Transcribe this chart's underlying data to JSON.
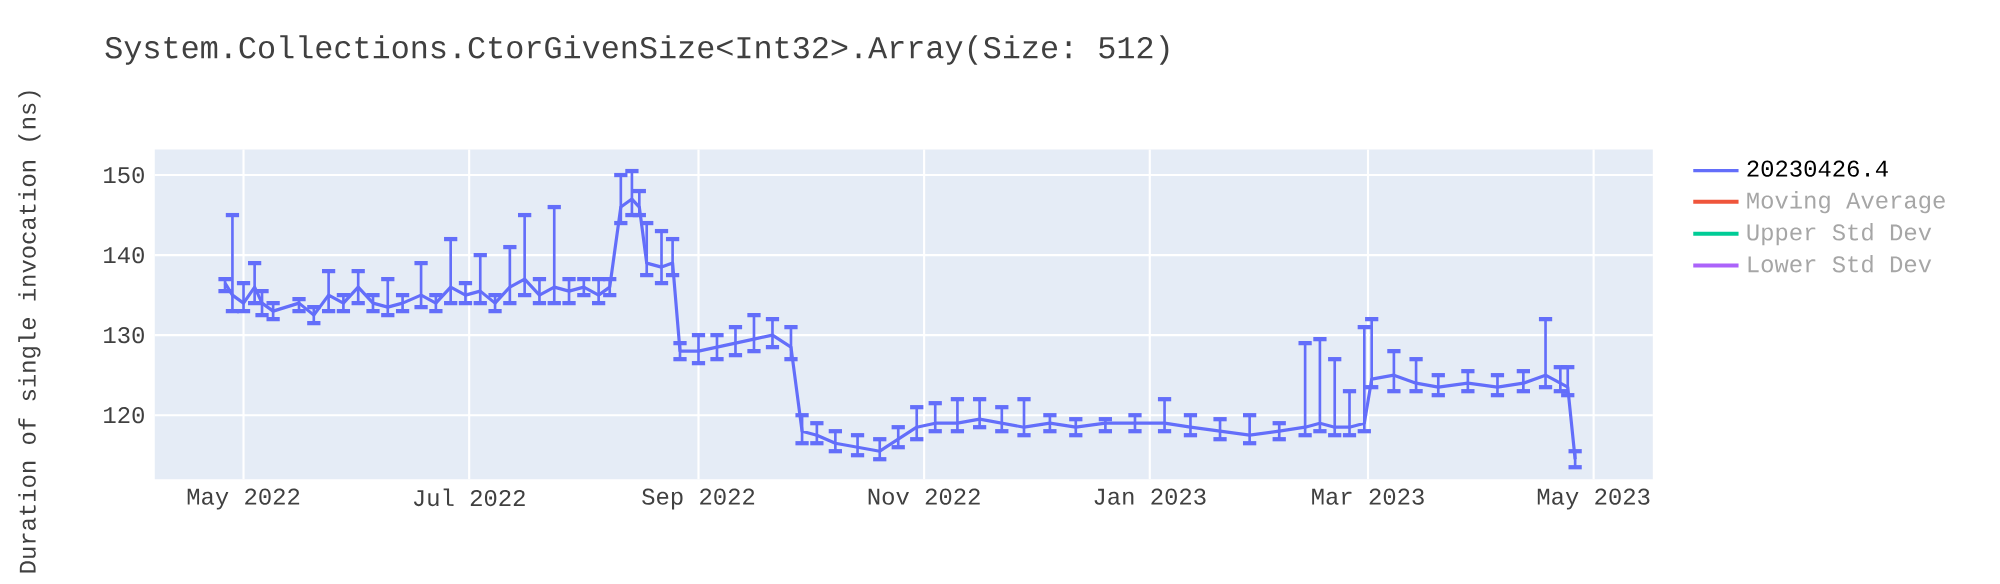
{
  "chart_data": {
    "type": "line",
    "title": "System.Collections.CtorGivenSize<Int32>.Array(Size: 512)",
    "ylabel": "Duration of single invocation (ns)",
    "xlim": [
      "2022-04-07",
      "2023-05-17"
    ],
    "ylim": [
      112,
      153.2
    ],
    "xticks": [
      {
        "value": "2022-05-01",
        "label": "May 2022"
      },
      {
        "value": "2022-07-01",
        "label": "Jul 2022"
      },
      {
        "value": "2022-09-01",
        "label": "Sep 2022"
      },
      {
        "value": "2022-11-01",
        "label": "Nov 2022"
      },
      {
        "value": "2023-01-01",
        "label": "Jan 2023"
      },
      {
        "value": "2023-03-01",
        "label": "Mar 2023"
      },
      {
        "value": "2023-05-01",
        "label": "May 2023"
      }
    ],
    "yticks": [
      120,
      130,
      140,
      150
    ],
    "grid": true,
    "legend": "top right",
    "marker": "none",
    "line_style": "solid",
    "series": [
      {
        "name": "20230426.4",
        "color": "#636efa",
        "x": [
          "2022-04-26",
          "2022-04-28",
          "2022-05-01",
          "2022-05-04",
          "2022-05-06",
          "2022-05-09",
          "2022-05-16",
          "2022-05-20",
          "2022-05-24",
          "2022-05-28",
          "2022-06-01",
          "2022-06-05",
          "2022-06-09",
          "2022-06-13",
          "2022-06-18",
          "2022-06-22",
          "2022-06-26",
          "2022-06-30",
          "2022-07-04",
          "2022-07-08",
          "2022-07-12",
          "2022-07-16",
          "2022-07-20",
          "2022-07-24",
          "2022-07-28",
          "2022-08-01",
          "2022-08-05",
          "2022-08-08",
          "2022-08-11",
          "2022-08-14",
          "2022-08-16",
          "2022-08-18",
          "2022-08-22",
          "2022-08-25",
          "2022-08-27",
          "2022-09-01",
          "2022-09-06",
          "2022-09-11",
          "2022-09-16",
          "2022-09-21",
          "2022-09-26",
          "2022-09-29",
          "2022-10-03",
          "2022-10-08",
          "2022-10-14",
          "2022-10-20",
          "2022-10-25",
          "2022-10-30",
          "2022-11-04",
          "2022-11-10",
          "2022-11-16",
          "2022-11-22",
          "2022-11-28",
          "2022-12-05",
          "2022-12-12",
          "2022-12-20",
          "2022-12-28",
          "2023-01-05",
          "2023-01-12",
          "2023-01-20",
          "2023-01-28",
          "2023-02-05",
          "2023-02-12",
          "2023-02-16",
          "2023-02-20",
          "2023-02-24",
          "2023-02-28",
          "2023-03-02",
          "2023-03-08",
          "2023-03-14",
          "2023-03-20",
          "2023-03-28",
          "2023-04-05",
          "2023-04-12",
          "2023-04-18",
          "2023-04-22",
          "2023-04-24",
          "2023-04-26"
        ],
        "values": [
          136.5,
          135,
          134,
          136,
          134,
          133,
          134,
          132.5,
          135,
          134,
          136,
          134,
          133.5,
          134,
          135,
          134,
          136,
          135,
          135.5,
          134,
          136,
          137,
          135,
          136,
          135.5,
          136,
          135,
          136,
          146,
          147,
          146,
          139,
          138.5,
          139,
          128,
          128,
          128.5,
          129,
          129.5,
          130,
          128.5,
          118,
          117.5,
          116.5,
          116,
          115.5,
          117,
          118.5,
          119,
          119,
          119.5,
          119,
          118.5,
          119,
          118.5,
          119,
          119,
          119,
          118.5,
          118,
          117.5,
          118,
          118.5,
          119,
          118.5,
          118.5,
          119,
          124.5,
          125,
          124,
          123.5,
          124,
          123.5,
          124,
          125,
          124,
          123.5,
          114.5
        ],
        "errors": [
          [
            135.5,
            137
          ],
          [
            133,
            145
          ],
          [
            133,
            136.5
          ],
          [
            134,
            139
          ],
          [
            132.5,
            135.5
          ],
          [
            132,
            134
          ],
          [
            133,
            134.5
          ],
          [
            131.5,
            133.5
          ],
          [
            133,
            138
          ],
          [
            133,
            135
          ],
          [
            134,
            138
          ],
          [
            133,
            135
          ],
          [
            132.5,
            137
          ],
          [
            133,
            135
          ],
          [
            133.5,
            139
          ],
          [
            133,
            135
          ],
          [
            134,
            142
          ],
          [
            134,
            136.5
          ],
          [
            134,
            140
          ],
          [
            133,
            135
          ],
          [
            134,
            141
          ],
          [
            135,
            145
          ],
          [
            134,
            137
          ],
          [
            134,
            146
          ],
          [
            134,
            137
          ],
          [
            135,
            137
          ],
          [
            134,
            137
          ],
          [
            135,
            137
          ],
          [
            144,
            150
          ],
          [
            145,
            150.5
          ],
          [
            145,
            148
          ],
          [
            137.5,
            144
          ],
          [
            136.5,
            143
          ],
          [
            137.5,
            142
          ],
          [
            127,
            129
          ],
          [
            126.5,
            130
          ],
          [
            127,
            130
          ],
          [
            127.5,
            131
          ],
          [
            128,
            132.5
          ],
          [
            128.5,
            132
          ],
          [
            127,
            131
          ],
          [
            116.5,
            120
          ],
          [
            116.5,
            119
          ],
          [
            115.5,
            118
          ],
          [
            115,
            117.5
          ],
          [
            114.5,
            117
          ],
          [
            116,
            118.5
          ],
          [
            117,
            121
          ],
          [
            118,
            121.5
          ],
          [
            118,
            122
          ],
          [
            118.5,
            122
          ],
          [
            118,
            121
          ],
          [
            117.5,
            122
          ],
          [
            118,
            120
          ],
          [
            117.5,
            119.5
          ],
          [
            118,
            119.5
          ],
          [
            118,
            120
          ],
          [
            118,
            122
          ],
          [
            117.5,
            120
          ],
          [
            117,
            119.5
          ],
          [
            116.5,
            120
          ],
          [
            117,
            119
          ],
          [
            117.5,
            129
          ],
          [
            118,
            129.5
          ],
          [
            117.5,
            127
          ],
          [
            117.5,
            123
          ],
          [
            118,
            131
          ],
          [
            123.5,
            132
          ],
          [
            123,
            128
          ],
          [
            123,
            127
          ],
          [
            122.5,
            125
          ],
          [
            123,
            125.5
          ],
          [
            122.5,
            125
          ],
          [
            123,
            125.5
          ],
          [
            123.5,
            132
          ],
          [
            123,
            126
          ],
          [
            122.5,
            126
          ],
          [
            113.5,
            115.5
          ]
        ]
      },
      {
        "name": "Moving Average",
        "color": "#ef553b"
      },
      {
        "name": "Upper Std Dev",
        "color": "#00cc96"
      },
      {
        "name": "Lower Std Dev",
        "color": "#ab63fa"
      }
    ]
  }
}
